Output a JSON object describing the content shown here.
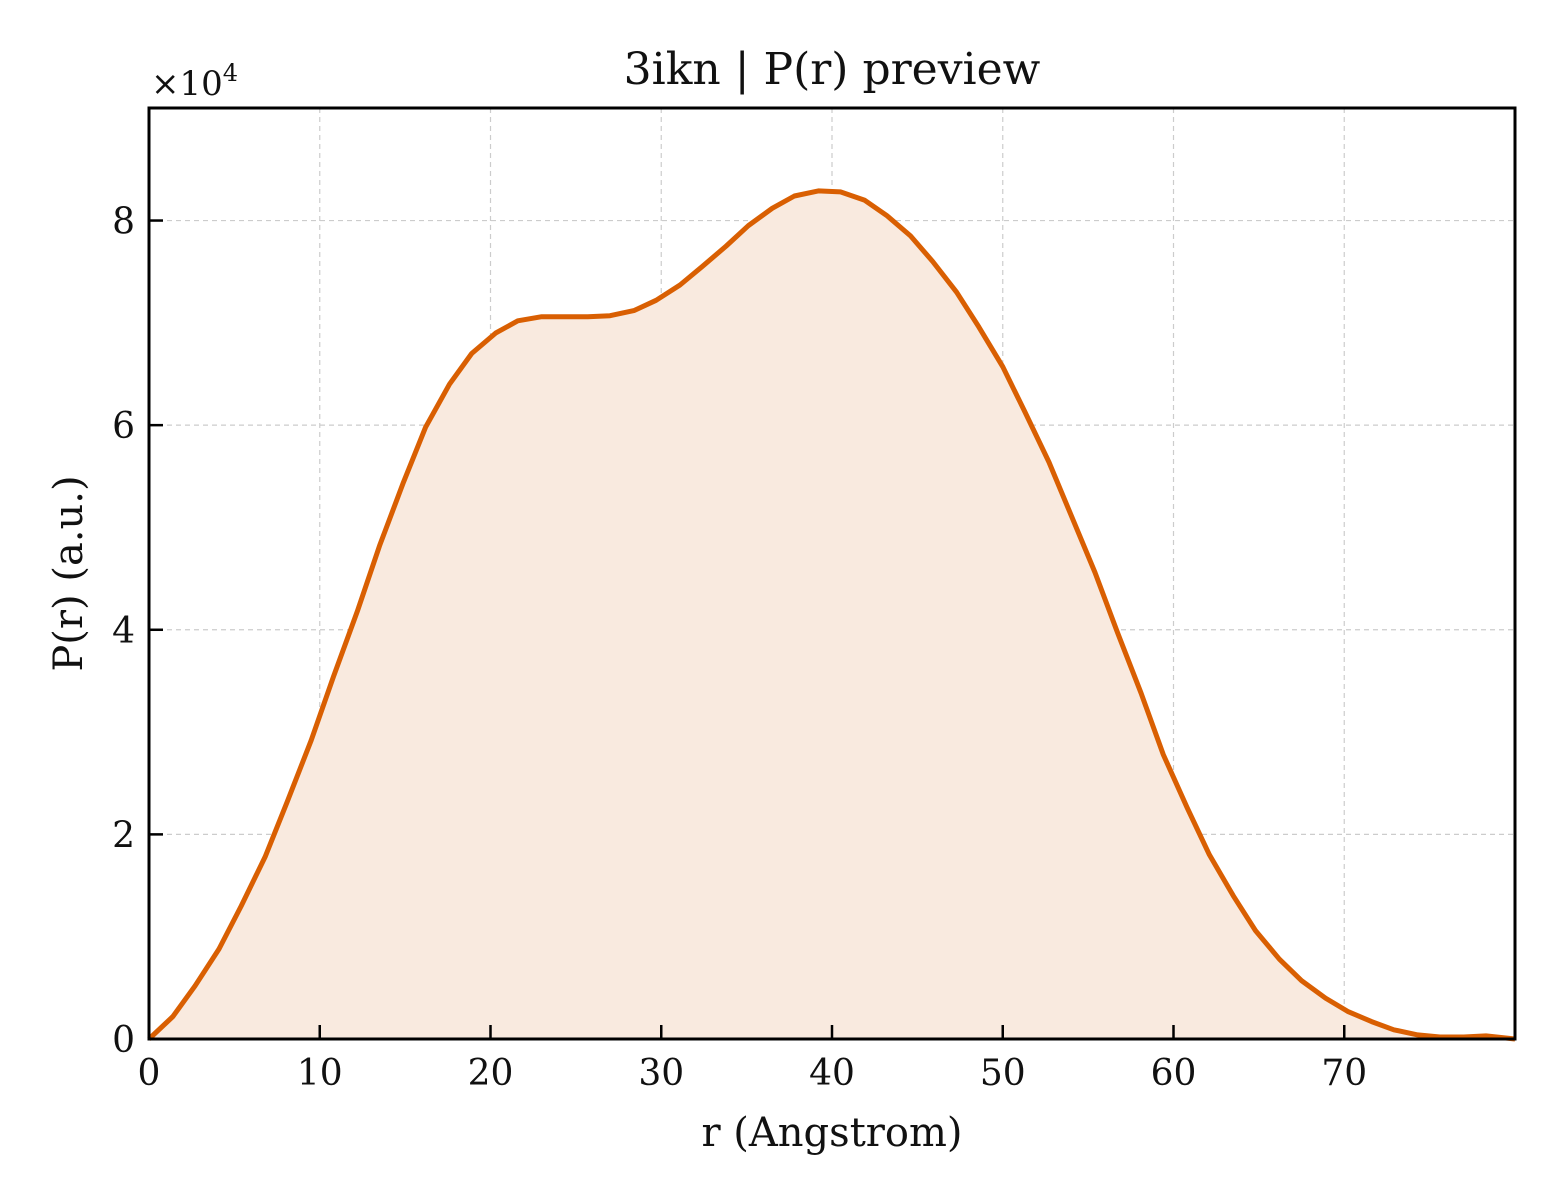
{
  "chart_data": {
    "type": "area",
    "title": "3ikn | P(r) preview",
    "xlabel": "r (Angstrom)",
    "ylabel": "P(r) (a.u.)",
    "y_multiplier": {
      "base": "×10",
      "exponent": "4"
    },
    "xlim": [
      0,
      80
    ],
    "ylim": [
      0,
      9.1
    ],
    "x_ticks": [
      0,
      10,
      20,
      30,
      40,
      50,
      60,
      70
    ],
    "x_tick_labels": [
      "0",
      "10",
      "20",
      "30",
      "40",
      "50",
      "60",
      "70"
    ],
    "y_ticks": [
      0,
      2,
      4,
      6,
      8
    ],
    "y_tick_labels": [
      "0",
      "2",
      "4",
      "6",
      "8"
    ],
    "grid": true,
    "colors": {
      "line": "#d95f02",
      "fill": "#f9eadf",
      "grid": "#cccccc",
      "axes": "#000000"
    },
    "series": [
      {
        "x": [
          0,
          1.4,
          2.7,
          4.1,
          5.4,
          6.8,
          8.1,
          9.5,
          10.8,
          12.2,
          13.5,
          14.9,
          16.2,
          17.6,
          18.9,
          20.3,
          21.6,
          23.0,
          24.3,
          25.7,
          27.0,
          28.4,
          29.7,
          31.1,
          32.4,
          33.8,
          35.1,
          36.5,
          37.8,
          39.2,
          40.5,
          41.9,
          43.2,
          44.6,
          45.9,
          47.3,
          48.6,
          50.0,
          51.3,
          52.7,
          54.0,
          55.4,
          56.7,
          58.1,
          59.4,
          60.8,
          62.1,
          63.5,
          64.8,
          66.2,
          67.5,
          68.9,
          70.2,
          71.6,
          72.9,
          74.3,
          75.6,
          77.0,
          78.3,
          80.0
        ],
        "values": [
          0.0,
          0.22,
          0.52,
          0.88,
          1.3,
          1.78,
          2.32,
          2.92,
          3.54,
          4.18,
          4.82,
          5.44,
          5.98,
          6.4,
          6.7,
          6.9,
          7.02,
          7.06,
          7.06,
          7.06,
          7.07,
          7.12,
          7.22,
          7.37,
          7.55,
          7.75,
          7.95,
          8.12,
          8.24,
          8.29,
          8.28,
          8.2,
          8.05,
          7.85,
          7.6,
          7.3,
          6.96,
          6.57,
          6.13,
          5.64,
          5.12,
          4.56,
          3.98,
          3.38,
          2.78,
          2.26,
          1.8,
          1.4,
          1.06,
          0.78,
          0.57,
          0.4,
          0.27,
          0.17,
          0.09,
          0.04,
          0.02,
          0.02,
          0.03,
          0.0
        ]
      }
    ]
  }
}
